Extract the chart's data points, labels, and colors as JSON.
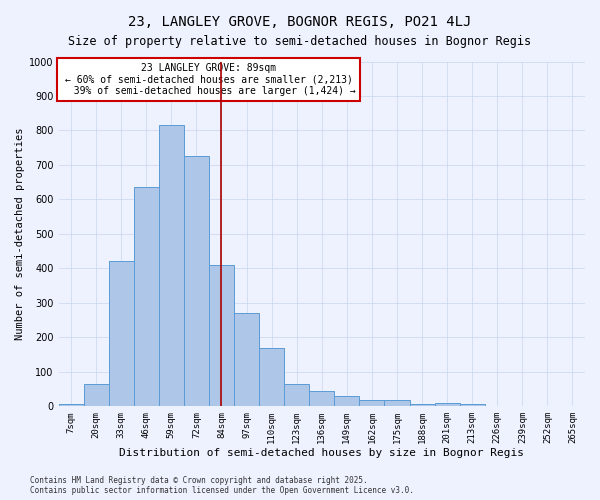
{
  "title": "23, LANGLEY GROVE, BOGNOR REGIS, PO21 4LJ",
  "subtitle": "Size of property relative to semi-detached houses in Bognor Regis",
  "xlabel": "Distribution of semi-detached houses by size in Bognor Regis",
  "ylabel": "Number of semi-detached properties",
  "categories": [
    "7sqm",
    "20sqm",
    "33sqm",
    "46sqm",
    "59sqm",
    "72sqm",
    "84sqm",
    "97sqm",
    "110sqm",
    "123sqm",
    "136sqm",
    "149sqm",
    "162sqm",
    "175sqm",
    "188sqm",
    "201sqm",
    "213sqm",
    "226sqm",
    "239sqm",
    "252sqm",
    "265sqm"
  ],
  "values": [
    5,
    65,
    420,
    635,
    815,
    725,
    410,
    270,
    170,
    65,
    45,
    30,
    18,
    18,
    5,
    10,
    5,
    2,
    2,
    2,
    2
  ],
  "bar_color": "#aec6e8",
  "bar_edge_color": "#5b9bd5",
  "highlight_index": 6,
  "highlight_line_color": "#aa0000",
  "annotation_text": "23 LANGLEY GROVE: 89sqm\n← 60% of semi-detached houses are smaller (2,213)\n  39% of semi-detached houses are larger (1,424) →",
  "annotation_box_color": "#ffffff",
  "annotation_box_edge_color": "#cc0000",
  "ylim": [
    0,
    1000
  ],
  "yticks": [
    0,
    100,
    200,
    300,
    400,
    500,
    600,
    700,
    800,
    900,
    1000
  ],
  "background_color": "#eef2ff",
  "footer_text": "Contains HM Land Registry data © Crown copyright and database right 2025.\nContains public sector information licensed under the Open Government Licence v3.0.",
  "title_fontsize": 10,
  "subtitle_fontsize": 8.5,
  "xlabel_fontsize": 8,
  "ylabel_fontsize": 7.5,
  "annotation_fontsize": 7,
  "footer_fontsize": 5.5,
  "tick_fontsize": 6.5,
  "ytick_fontsize": 7
}
